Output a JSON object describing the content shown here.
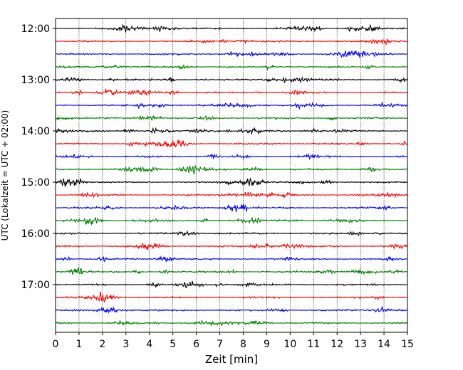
{
  "chart_data": {
    "type": "line",
    "title": "",
    "xlabel": "Zeit  [min]",
    "ylabel": "UTC (Lokalzeit = UTC + 02:00)",
    "xlim": [
      0,
      15
    ],
    "xticks": [
      0,
      1,
      2,
      3,
      4,
      5,
      6,
      7,
      8,
      9,
      10,
      11,
      12,
      13,
      14,
      15
    ],
    "ytick_labels": [
      "12:00",
      "13:00",
      "14:00",
      "15:00",
      "16:00",
      "17:00"
    ],
    "grid": "vertical dotted lines at each minute",
    "trace_interval_min": 15,
    "trace_start": "12:00",
    "trace_count": 24,
    "trace_colors": [
      "#000000",
      "#ff0000",
      "#0000ff",
      "#008000"
    ]
  }
}
